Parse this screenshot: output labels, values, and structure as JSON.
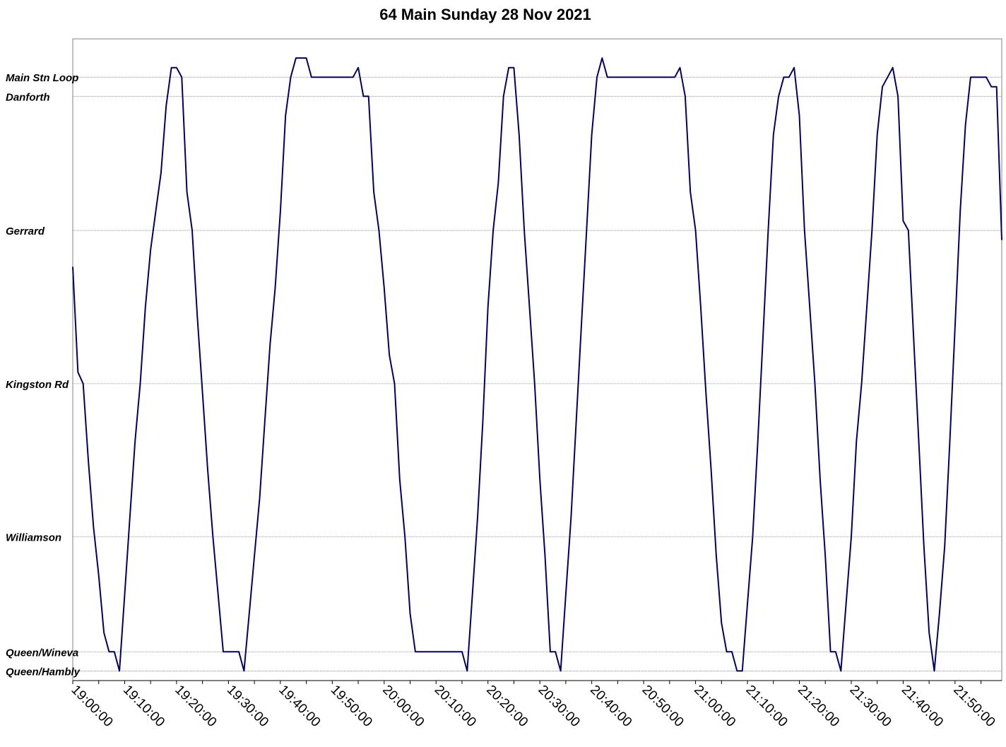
{
  "chart_data": {
    "type": "line",
    "title": "64 Main Sunday 28 Nov 2021",
    "xlabel": "",
    "ylabel": "",
    "x_axis": {
      "type": "time",
      "start": "19:00:00",
      "end": "21:59:00",
      "tick_labels": [
        "19:00:00",
        "19:10:00",
        "19:20:00",
        "19:30:00",
        "19:40:00",
        "19:50:00",
        "20:00:00",
        "20:10:00",
        "20:20:00",
        "20:30:00",
        "20:40:00",
        "20:50:00",
        "21:00:00",
        "21:10:00",
        "21:20:00",
        "21:30:00",
        "21:40:00",
        "21:50:00"
      ]
    },
    "y_axis": {
      "unit": "km from Queen/Hambly",
      "range": [
        -0.05,
        3.3
      ],
      "stops": [
        {
          "name": "Main Stn Loop",
          "km": 3.1
        },
        {
          "name": "Danforth",
          "km": 3.0
        },
        {
          "name": "Gerrard",
          "km": 2.3
        },
        {
          "name": "Kingston Rd",
          "km": 1.5
        },
        {
          "name": "Williamson",
          "km": 0.7
        },
        {
          "name": "Queen/Wineva",
          "km": 0.1
        },
        {
          "name": "Queen/Hambly",
          "km": 0.0
        }
      ]
    },
    "grid": true,
    "legend": "none",
    "line_color": "#000066",
    "series": [
      {
        "points": [
          [
            "19:00:00",
            2.11
          ],
          [
            "19:01:00",
            1.56
          ],
          [
            "19:02:00",
            1.5
          ],
          [
            "19:03:00",
            1.1
          ],
          [
            "19:04:00",
            0.75
          ],
          [
            "19:05:00",
            0.5
          ],
          [
            "19:06:00",
            0.2
          ],
          [
            "19:07:00",
            0.1
          ],
          [
            "19:08:00",
            0.1
          ],
          [
            "19:09:00",
            0.0
          ],
          [
            "19:10:00",
            0.4
          ],
          [
            "19:11:00",
            0.8
          ],
          [
            "19:12:00",
            1.2
          ],
          [
            "19:13:00",
            1.5
          ],
          [
            "19:14:00",
            1.9
          ],
          [
            "19:15:00",
            2.2
          ],
          [
            "19:16:00",
            2.4
          ],
          [
            "19:17:00",
            2.6
          ],
          [
            "19:18:00",
            2.95
          ],
          [
            "19:19:00",
            3.15
          ],
          [
            "19:20:00",
            3.15
          ],
          [
            "19:21:00",
            3.1
          ],
          [
            "19:22:00",
            2.5
          ],
          [
            "19:23:00",
            2.3
          ],
          [
            "19:24:00",
            1.85
          ],
          [
            "19:25:00",
            1.45
          ],
          [
            "19:26:00",
            1.05
          ],
          [
            "19:27:00",
            0.7
          ],
          [
            "19:28:00",
            0.4
          ],
          [
            "19:29:00",
            0.1
          ],
          [
            "19:30:00",
            0.1
          ],
          [
            "19:31:00",
            0.1
          ],
          [
            "19:32:00",
            0.1
          ],
          [
            "19:33:00",
            0.0
          ],
          [
            "19:34:00",
            0.3
          ],
          [
            "19:35:00",
            0.6
          ],
          [
            "19:36:00",
            0.9
          ],
          [
            "19:37:00",
            1.3
          ],
          [
            "19:38:00",
            1.7
          ],
          [
            "19:39:00",
            2.0
          ],
          [
            "19:40:00",
            2.4
          ],
          [
            "19:41:00",
            2.9
          ],
          [
            "19:42:00",
            3.1
          ],
          [
            "19:43:00",
            3.2
          ],
          [
            "19:44:00",
            3.2
          ],
          [
            "19:45:00",
            3.2
          ],
          [
            "19:46:00",
            3.1
          ],
          [
            "19:47:00",
            3.1
          ],
          [
            "19:48:00",
            3.1
          ],
          [
            "19:49:00",
            3.1
          ],
          [
            "19:50:00",
            3.1
          ],
          [
            "19:51:00",
            3.1
          ],
          [
            "19:52:00",
            3.1
          ],
          [
            "19:53:00",
            3.1
          ],
          [
            "19:54:00",
            3.1
          ],
          [
            "19:55:00",
            3.15
          ],
          [
            "19:56:00",
            3.0
          ],
          [
            "19:57:00",
            3.0
          ],
          [
            "19:58:00",
            2.5
          ],
          [
            "19:59:00",
            2.3
          ],
          [
            "20:00:00",
            2.0
          ],
          [
            "20:01:00",
            1.65
          ],
          [
            "20:02:00",
            1.5
          ],
          [
            "20:03:00",
            1.0
          ],
          [
            "20:04:00",
            0.7
          ],
          [
            "20:05:00",
            0.3
          ],
          [
            "20:06:00",
            0.1
          ],
          [
            "20:07:00",
            0.1
          ],
          [
            "20:08:00",
            0.1
          ],
          [
            "20:09:00",
            0.1
          ],
          [
            "20:10:00",
            0.1
          ],
          [
            "20:11:00",
            0.1
          ],
          [
            "20:12:00",
            0.1
          ],
          [
            "20:13:00",
            0.1
          ],
          [
            "20:14:00",
            0.1
          ],
          [
            "20:15:00",
            0.1
          ],
          [
            "20:16:00",
            0.0
          ],
          [
            "20:17:00",
            0.4
          ],
          [
            "20:18:00",
            0.8
          ],
          [
            "20:19:00",
            1.3
          ],
          [
            "20:20:00",
            1.9
          ],
          [
            "20:21:00",
            2.3
          ],
          [
            "20:22:00",
            2.55
          ],
          [
            "20:23:00",
            3.0
          ],
          [
            "20:24:00",
            3.15
          ],
          [
            "20:25:00",
            3.15
          ],
          [
            "20:26:00",
            2.8
          ],
          [
            "20:27:00",
            2.3
          ],
          [
            "20:28:00",
            1.9
          ],
          [
            "20:29:00",
            1.5
          ],
          [
            "20:30:00",
            1.0
          ],
          [
            "20:31:00",
            0.6
          ],
          [
            "20:32:00",
            0.1
          ],
          [
            "20:33:00",
            0.1
          ],
          [
            "20:34:00",
            0.0
          ],
          [
            "20:35:00",
            0.4
          ],
          [
            "20:36:00",
            0.8
          ],
          [
            "20:37:00",
            1.3
          ],
          [
            "20:38:00",
            1.8
          ],
          [
            "20:39:00",
            2.3
          ],
          [
            "20:40:00",
            2.8
          ],
          [
            "20:41:00",
            3.1
          ],
          [
            "20:42:00",
            3.2
          ],
          [
            "20:43:00",
            3.1
          ],
          [
            "20:44:00",
            3.1
          ],
          [
            "20:45:00",
            3.1
          ],
          [
            "20:46:00",
            3.1
          ],
          [
            "20:47:00",
            3.1
          ],
          [
            "20:48:00",
            3.1
          ],
          [
            "20:49:00",
            3.1
          ],
          [
            "20:50:00",
            3.1
          ],
          [
            "20:51:00",
            3.1
          ],
          [
            "20:52:00",
            3.1
          ],
          [
            "20:53:00",
            3.1
          ],
          [
            "20:54:00",
            3.1
          ],
          [
            "20:55:00",
            3.1
          ],
          [
            "20:56:00",
            3.1
          ],
          [
            "20:57:00",
            3.15
          ],
          [
            "20:58:00",
            3.0
          ],
          [
            "20:59:00",
            2.5
          ],
          [
            "21:00:00",
            2.3
          ],
          [
            "21:01:00",
            1.9
          ],
          [
            "21:02:00",
            1.45
          ],
          [
            "21:03:00",
            1.05
          ],
          [
            "21:04:00",
            0.6
          ],
          [
            "21:05:00",
            0.25
          ],
          [
            "21:06:00",
            0.1
          ],
          [
            "21:07:00",
            0.1
          ],
          [
            "21:08:00",
            0.0
          ],
          [
            "21:09:00",
            0.0
          ],
          [
            "21:10:00",
            0.35
          ],
          [
            "21:11:00",
            0.7
          ],
          [
            "21:12:00",
            1.2
          ],
          [
            "21:13:00",
            1.75
          ],
          [
            "21:14:00",
            2.3
          ],
          [
            "21:15:00",
            2.8
          ],
          [
            "21:16:00",
            3.0
          ],
          [
            "21:17:00",
            3.1
          ],
          [
            "21:18:00",
            3.1
          ],
          [
            "21:19:00",
            3.15
          ],
          [
            "21:20:00",
            2.9
          ],
          [
            "21:21:00",
            2.3
          ],
          [
            "21:22:00",
            1.9
          ],
          [
            "21:23:00",
            1.5
          ],
          [
            "21:24:00",
            1.0
          ],
          [
            "21:25:00",
            0.6
          ],
          [
            "21:26:00",
            0.1
          ],
          [
            "21:27:00",
            0.1
          ],
          [
            "21:28:00",
            0.0
          ],
          [
            "21:29:00",
            0.35
          ],
          [
            "21:30:00",
            0.7
          ],
          [
            "21:31:00",
            1.2
          ],
          [
            "21:32:00",
            1.5
          ],
          [
            "21:33:00",
            1.9
          ],
          [
            "21:34:00",
            2.3
          ],
          [
            "21:35:00",
            2.8
          ],
          [
            "21:36:00",
            3.05
          ],
          [
            "21:37:00",
            3.1
          ],
          [
            "21:38:00",
            3.15
          ],
          [
            "21:39:00",
            3.0
          ],
          [
            "21:40:00",
            2.35
          ],
          [
            "21:41:00",
            2.3
          ],
          [
            "21:42:00",
            1.75
          ],
          [
            "21:43:00",
            1.2
          ],
          [
            "21:44:00",
            0.65
          ],
          [
            "21:45:00",
            0.2
          ],
          [
            "21:46:00",
            0.0
          ],
          [
            "21:47:00",
            0.3
          ],
          [
            "21:48:00",
            0.65
          ],
          [
            "21:49:00",
            1.2
          ],
          [
            "21:50:00",
            1.8
          ],
          [
            "21:51:00",
            2.4
          ],
          [
            "21:52:00",
            2.85
          ],
          [
            "21:53:00",
            3.1
          ],
          [
            "21:54:00",
            3.1
          ],
          [
            "21:55:00",
            3.1
          ],
          [
            "21:56:00",
            3.1
          ],
          [
            "21:57:00",
            3.05
          ],
          [
            "21:58:00",
            3.05
          ],
          [
            "21:59:00",
            2.25
          ]
        ]
      }
    ]
  }
}
